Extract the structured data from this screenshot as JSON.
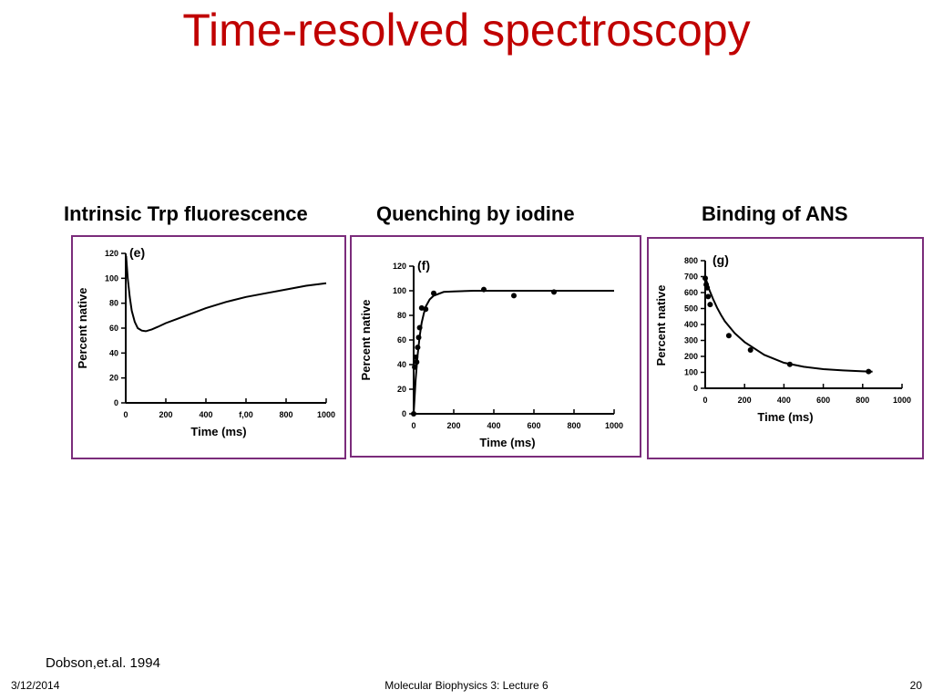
{
  "slide": {
    "title": "Time-resolved spectroscopy",
    "panel_titles": [
      "Intrinsic Trp fluorescence",
      "Quenching by iodine",
      "Binding of ANS"
    ],
    "citation": "Dobson,et.al. 1994",
    "footer": {
      "date": "3/12/2014",
      "center": "Molecular Biophysics 3: Lecture 6",
      "page": "20"
    },
    "colors": {
      "title": "#c00000",
      "panel_border": "#7b2c7b"
    }
  },
  "chart_data": [
    {
      "type": "line",
      "panel_letter": "(e)",
      "xlabel": "Time (ms)",
      "ylabel": "Percent native",
      "xlim": [
        0,
        1000
      ],
      "ylim": [
        0,
        120
      ],
      "xticks": [
        0,
        200,
        400,
        600,
        800,
        1000
      ],
      "xtick_labels": [
        "0",
        "200",
        "400",
        "f,00",
        "800",
        "1000"
      ],
      "yticks": [
        0,
        20,
        40,
        60,
        80,
        100,
        120
      ],
      "ytick_labels": [
        "0",
        "20",
        "40",
        "60",
        "80",
        "100",
        "120"
      ],
      "grid": false,
      "series": [
        {
          "kind": "curve",
          "x": [
            2,
            10,
            20,
            30,
            45,
            60,
            80,
            100,
            130,
            160,
            200,
            250,
            300,
            400,
            500,
            600,
            700,
            800,
            900,
            1000
          ],
          "y": [
            118,
            100,
            85,
            74,
            65,
            60,
            58,
            57.5,
            59,
            61,
            64,
            67,
            70,
            76,
            81,
            85,
            88,
            91,
            94,
            96
          ]
        }
      ]
    },
    {
      "type": "scatter",
      "panel_letter": "(f)",
      "xlabel": "Time (ms)",
      "ylabel": "Percent native",
      "xlim": [
        0,
        1000
      ],
      "ylim": [
        0,
        120
      ],
      "xticks": [
        0,
        200,
        400,
        600,
        800,
        1000
      ],
      "xtick_labels": [
        "0",
        "200",
        "400",
        "600",
        "800",
        "1000"
      ],
      "yticks": [
        0,
        20,
        40,
        60,
        80,
        100,
        120
      ],
      "ytick_labels": [
        "0",
        "20",
        "40",
        "60",
        "80",
        "100",
        "120"
      ],
      "grid": false,
      "series": [
        {
          "kind": "curve",
          "x": [
            0,
            10,
            20,
            30,
            40,
            50,
            60,
            80,
            100,
            150,
            200,
            300,
            400,
            600,
            800,
            1000
          ],
          "y": [
            0,
            28,
            48,
            63,
            74,
            81,
            87,
            93,
            96,
            99,
            99.5,
            100,
            100,
            100,
            100,
            100
          ]
        },
        {
          "kind": "points",
          "x": [
            0,
            5,
            10,
            15,
            20,
            25,
            30,
            40,
            60,
            100,
            350,
            500,
            700
          ],
          "y": [
            0,
            38,
            46,
            42,
            54,
            62,
            70,
            86,
            85,
            98,
            101,
            96,
            99
          ]
        }
      ]
    },
    {
      "type": "scatter",
      "panel_letter": "(g)",
      "xlabel": "Time (ms)",
      "ylabel": "Percent native",
      "xlim": [
        0,
        1000
      ],
      "ylim": [
        0,
        800
      ],
      "xticks": [
        0,
        200,
        400,
        600,
        800,
        1000
      ],
      "xtick_labels": [
        "0",
        "200",
        "400",
        "600",
        "800",
        "1000"
      ],
      "yticks": [
        0,
        100,
        200,
        300,
        400,
        500,
        600,
        700,
        800
      ],
      "ytick_labels": [
        "0",
        "100",
        "200",
        "300",
        "400",
        "500",
        "600",
        "700",
        "800"
      ],
      "grid": false,
      "series": [
        {
          "kind": "curve",
          "x": [
            0,
            20,
            40,
            60,
            80,
            100,
            150,
            200,
            250,
            300,
            400,
            500,
            600,
            700,
            800,
            850
          ],
          "y": [
            700,
            620,
            560,
            505,
            460,
            420,
            345,
            290,
            250,
            210,
            160,
            135,
            120,
            112,
            106,
            104
          ]
        },
        {
          "kind": "points",
          "x": [
            0,
            5,
            10,
            15,
            25,
            120,
            230,
            430,
            830
          ],
          "y": [
            690,
            650,
            630,
            575,
            525,
            330,
            240,
            150,
            105
          ]
        }
      ]
    }
  ]
}
